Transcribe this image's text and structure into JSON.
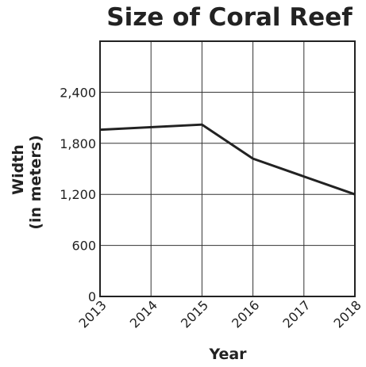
{
  "chart_data": {
    "type": "line",
    "title": "Size of Coral Reef",
    "xlabel": "Year",
    "ylabel": [
      "Width",
      "(in meters)"
    ],
    "x": [
      2013,
      2014,
      2015,
      2016,
      2017,
      2018
    ],
    "x_tick_labels": [
      "2013",
      "2014",
      "2015",
      "2016",
      "2017",
      "2018"
    ],
    "y_tick_values": [
      0,
      600,
      1200,
      1800,
      2400
    ],
    "y_tick_labels": [
      "0",
      "600",
      "1,200",
      "1,800",
      "2,400"
    ],
    "ylim": [
      0,
      3000
    ],
    "xlim": [
      2013,
      2018
    ],
    "grid": true,
    "series": [
      {
        "points": [
          {
            "x": 2013,
            "y": 1960
          },
          {
            "x": 2015,
            "y": 2020
          },
          {
            "x": 2016,
            "y": 1620
          },
          {
            "x": 2018,
            "y": 1200
          }
        ]
      }
    ],
    "colors": {
      "line": "#222222",
      "grid": "#333333",
      "frame": "#222222",
      "text": "#222222"
    }
  }
}
